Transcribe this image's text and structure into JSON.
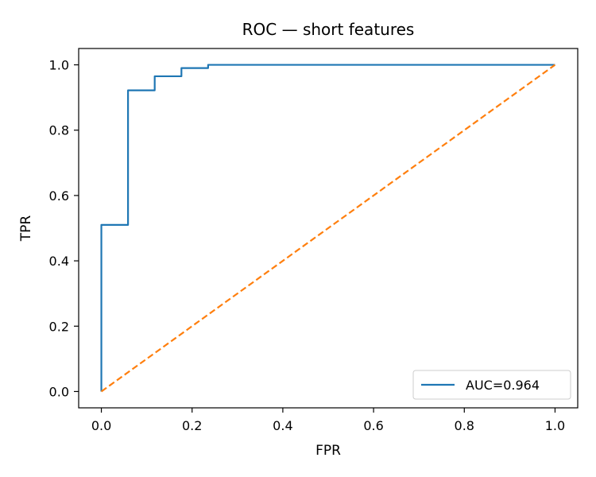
{
  "chart_data": {
    "type": "line",
    "title": "ROC — short features",
    "xlabel": "FPR",
    "ylabel": "TPR",
    "xlim": [
      -0.05,
      1.05
    ],
    "ylim": [
      -0.05,
      1.05
    ],
    "xticks": [
      "0.0",
      "0.2",
      "0.4",
      "0.6",
      "0.8",
      "1.0"
    ],
    "yticks": [
      "0.0",
      "0.2",
      "0.4",
      "0.6",
      "0.8",
      "1.0"
    ],
    "legend_position": "lower-right",
    "grid": false,
    "series": [
      {
        "name": "AUC=0.964",
        "color": "#1f77b4",
        "style": "solid",
        "x": [
          0.0,
          0.0,
          0.0588,
          0.0588,
          0.1176,
          0.1176,
          0.1765,
          0.1765,
          0.2353,
          0.2353,
          1.0
        ],
        "y": [
          0.0,
          0.51,
          0.51,
          0.922,
          0.922,
          0.965,
          0.965,
          0.99,
          0.99,
          1.0,
          1.0
        ]
      },
      {
        "color": "#ff7f0e",
        "style": "dashed",
        "x": [
          0.0,
          1.0
        ],
        "y": [
          0.0,
          1.0
        ]
      }
    ]
  }
}
